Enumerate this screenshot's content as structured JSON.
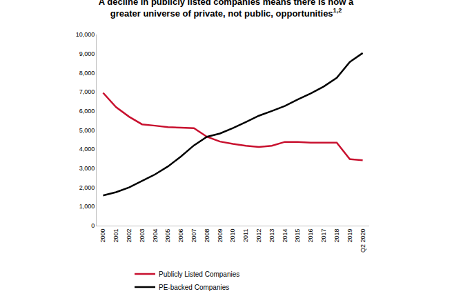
{
  "chart_data": {
    "type": "line",
    "title": [
      "A decline in publicly listed companies means there is now a",
      "greater universe of private, not public, opportunities"
    ],
    "title_superscript": "1,2",
    "categories": [
      "2000",
      "2001",
      "2002",
      "2003",
      "2004",
      "2005",
      "2006",
      "2007",
      "2008",
      "2009",
      "2010",
      "2011",
      "2012",
      "2013",
      "2014",
      "2015",
      "2016",
      "2017",
      "2018",
      "2019",
      "Q2 2020"
    ],
    "series": [
      {
        "name": "Publicly Listed Companies",
        "color": "#c8102e",
        "values": [
          6950,
          6200,
          5700,
          5300,
          5230,
          5150,
          5130,
          5100,
          4650,
          4400,
          4280,
          4180,
          4120,
          4180,
          4380,
          4380,
          4340,
          4340,
          4340,
          3480,
          3420
        ]
      },
      {
        "name": "PE-backed Companies",
        "color": "#000000",
        "values": [
          1580,
          1750,
          2000,
          2330,
          2680,
          3100,
          3620,
          4200,
          4650,
          4820,
          5100,
          5420,
          5750,
          6000,
          6260,
          6600,
          6920,
          7280,
          7730,
          8560,
          9030
        ]
      }
    ],
    "ylim": [
      0,
      10000
    ],
    "yticks": [
      0,
      {
        "value": 1000,
        "label": "1,000"
      },
      {
        "value": 2000,
        "label": "2,000"
      },
      {
        "value": 3000,
        "label": "3,000"
      },
      {
        "value": 4000,
        "label": "4,000"
      },
      {
        "value": 5000,
        "label": "5,000"
      },
      {
        "value": 6000,
        "label": "6,000"
      },
      {
        "value": 7000,
        "label": "7,000"
      },
      {
        "value": 8000,
        "label": "8,000"
      },
      {
        "value": 9000,
        "label": "9,000"
      },
      {
        "value": 10000,
        "label": "10,000"
      }
    ],
    "grid": false,
    "legend": "bottom"
  }
}
